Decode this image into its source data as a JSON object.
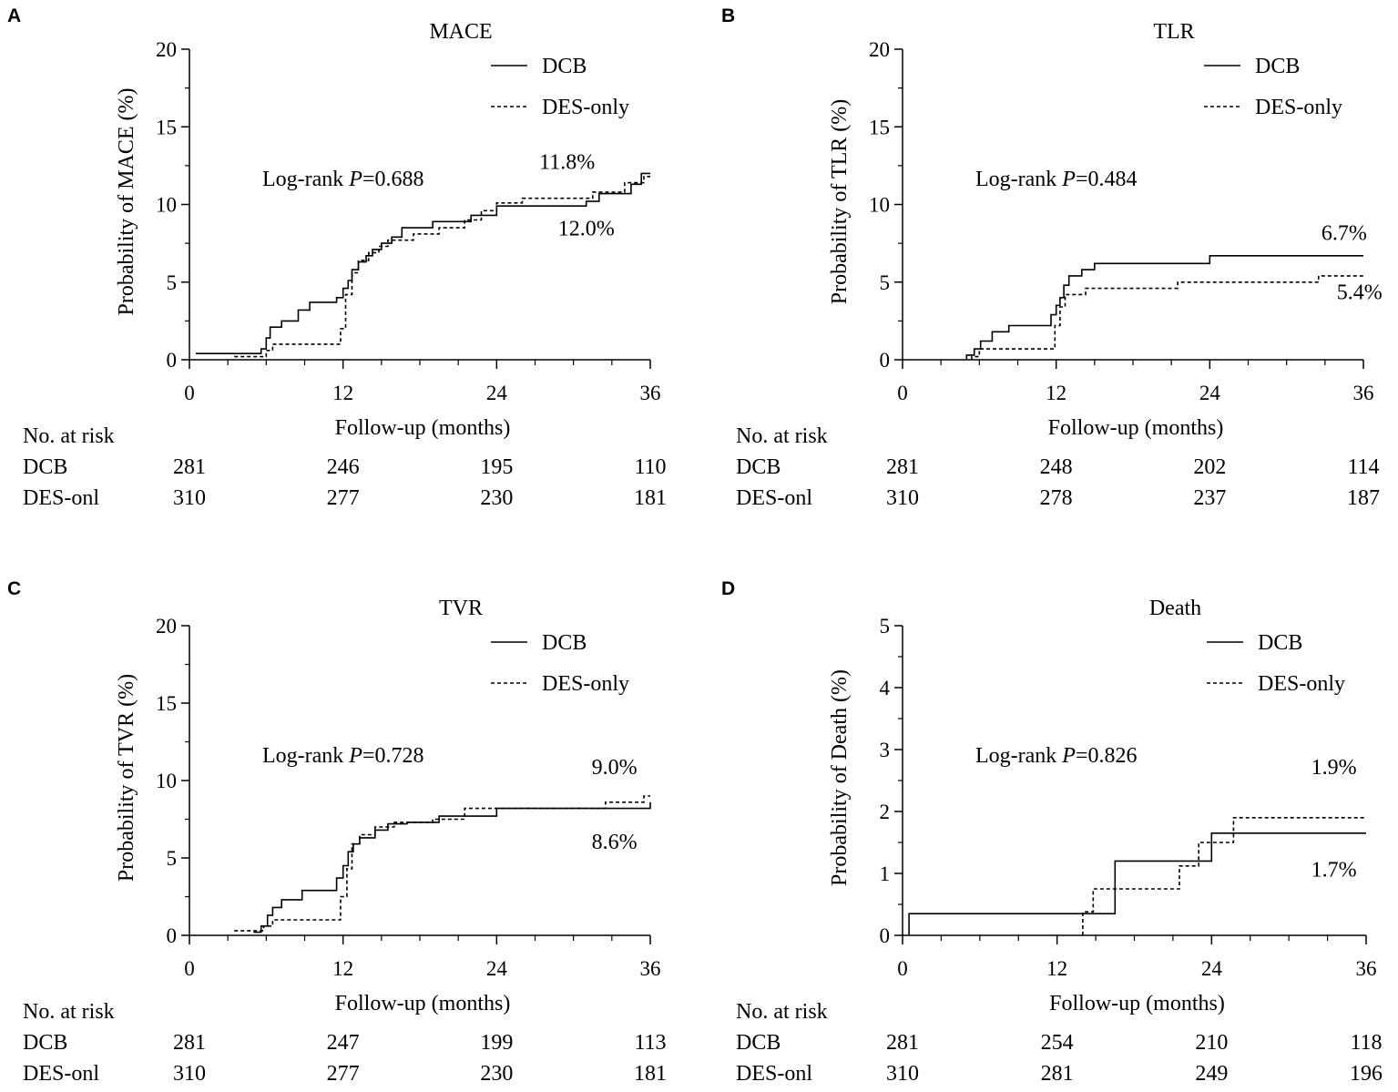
{
  "chart_data": [
    {
      "type": "line",
      "panel_label": "A",
      "title": "MACE",
      "ylabel": "Probability of MACE (%)",
      "xlabel": "Follow-up (months)",
      "xlim": [
        0,
        36
      ],
      "ylim": [
        0,
        20
      ],
      "xticks": [
        "0",
        "12",
        "24",
        "36"
      ],
      "yticks": [
        "0",
        "5",
        "10",
        "15",
        "20"
      ],
      "legend": {
        "position": "top-right",
        "entries": [
          "DCB",
          "DES-only"
        ]
      },
      "pvalue": {
        "prefix": "Log-rank ",
        "symbol": "P",
        "value": "=0.688"
      },
      "annotations": [
        {
          "text": "11.8%",
          "x": 29.5,
          "y": 12.3
        },
        {
          "text": "12.0%",
          "x": 31.0,
          "y": 8.0
        }
      ],
      "series": [
        {
          "name": "DCB",
          "style": "solid",
          "points": [
            [
              0.5,
              0.4
            ],
            [
              3.5,
              0.4
            ],
            [
              5.6,
              0.7
            ],
            [
              6.0,
              1.4
            ],
            [
              6.3,
              2.1
            ],
            [
              7.2,
              2.5
            ],
            [
              8.5,
              3.2
            ],
            [
              9.4,
              3.7
            ],
            [
              11.0,
              3.7
            ],
            [
              11.5,
              4.0
            ],
            [
              12.0,
              4.6
            ],
            [
              12.4,
              5.1
            ],
            [
              12.7,
              5.8
            ],
            [
              13.2,
              6.3
            ],
            [
              13.8,
              6.7
            ],
            [
              14.3,
              7.1
            ],
            [
              15.0,
              7.5
            ],
            [
              15.8,
              7.9
            ],
            [
              16.6,
              8.5
            ],
            [
              19.0,
              8.9
            ],
            [
              22.0,
              9.3
            ],
            [
              24.0,
              9.9
            ],
            [
              30.0,
              9.9
            ],
            [
              31.0,
              10.2
            ],
            [
              32.0,
              10.7
            ],
            [
              34.5,
              11.3
            ],
            [
              35.3,
              12.0
            ],
            [
              36.0,
              12.0
            ]
          ]
        },
        {
          "name": "DES-only",
          "style": "dashed",
          "points": [
            [
              3.5,
              0.2
            ],
            [
              6.0,
              0.6
            ],
            [
              6.5,
              1.0
            ],
            [
              11.2,
              1.0
            ],
            [
              11.8,
              2.0
            ],
            [
              12.2,
              4.2
            ],
            [
              12.7,
              5.6
            ],
            [
              13.2,
              6.4
            ],
            [
              14.0,
              6.9
            ],
            [
              14.8,
              7.3
            ],
            [
              15.5,
              7.7
            ],
            [
              17.5,
              8.1
            ],
            [
              19.5,
              8.5
            ],
            [
              21.5,
              9.0
            ],
            [
              22.8,
              9.6
            ],
            [
              24.0,
              10.1
            ],
            [
              26.0,
              10.4
            ],
            [
              31.5,
              10.8
            ],
            [
              34.0,
              11.4
            ],
            [
              35.5,
              11.8
            ],
            [
              36.0,
              11.8
            ]
          ]
        }
      ],
      "at_risk": {
        "label": "No. at risk",
        "rows": [
          {
            "name": "DCB",
            "values": [
              281,
              246,
              195,
              110
            ]
          },
          {
            "name": "DES-onl",
            "values": [
              310,
              277,
              230,
              181
            ]
          }
        ]
      }
    },
    {
      "type": "line",
      "panel_label": "B",
      "title": "TLR",
      "ylabel": "Probability of TLR (%)",
      "xlabel": "Follow-up (months)",
      "xlim": [
        0,
        36
      ],
      "ylim": [
        0,
        20
      ],
      "xticks": [
        "0",
        "12",
        "24",
        "36"
      ],
      "yticks": [
        "0",
        "5",
        "10",
        "15",
        "20"
      ],
      "legend": {
        "position": "top-right",
        "entries": [
          "DCB",
          "DES-only"
        ]
      },
      "pvalue": {
        "prefix": "Log-rank ",
        "symbol": "P",
        "value": "=0.484"
      },
      "annotations": [
        {
          "text": "6.7%",
          "x": 34.5,
          "y": 7.7
        },
        {
          "text": "5.4%",
          "x": 35.7,
          "y": 3.9
        }
      ],
      "series": [
        {
          "name": "DCB",
          "style": "solid",
          "points": [
            [
              5.0,
              0.0
            ],
            [
              5.0,
              0.3
            ],
            [
              5.6,
              0.7
            ],
            [
              6.1,
              1.2
            ],
            [
              7.0,
              1.8
            ],
            [
              8.3,
              2.2
            ],
            [
              11.0,
              2.2
            ],
            [
              11.6,
              2.9
            ],
            [
              12.0,
              3.5
            ],
            [
              12.3,
              4.0
            ],
            [
              12.6,
              4.8
            ],
            [
              13.0,
              5.4
            ],
            [
              14.0,
              5.8
            ],
            [
              15.0,
              6.2
            ],
            [
              24.0,
              6.2
            ],
            [
              24.0,
              6.7
            ],
            [
              36.0,
              6.7
            ]
          ]
        },
        {
          "name": "DES-only",
          "style": "dashed",
          "points": [
            [
              5.4,
              0.0
            ],
            [
              5.4,
              0.2
            ],
            [
              6.0,
              0.7
            ],
            [
              11.3,
              0.7
            ],
            [
              11.9,
              2.2
            ],
            [
              12.3,
              3.4
            ],
            [
              12.7,
              4.2
            ],
            [
              14.3,
              4.6
            ],
            [
              21.5,
              5.0
            ],
            [
              32.5,
              5.4
            ],
            [
              36.0,
              5.4
            ]
          ]
        }
      ],
      "at_risk": {
        "label": "No. at risk",
        "rows": [
          {
            "name": "DCB",
            "values": [
              281,
              248,
              202,
              114
            ]
          },
          {
            "name": "DES-onl",
            "values": [
              310,
              278,
              237,
              187
            ]
          }
        ]
      }
    },
    {
      "type": "line",
      "panel_label": "C",
      "title": "TVR",
      "ylabel": "Probability of TVR (%)",
      "xlabel": "Follow-up (months)",
      "xlim": [
        0,
        36
      ],
      "ylim": [
        0,
        20
      ],
      "xticks": [
        "0",
        "12",
        "24",
        "36"
      ],
      "yticks": [
        "0",
        "5",
        "10",
        "15",
        "20"
      ],
      "legend": {
        "position": "top-right",
        "entries": [
          "DCB",
          "DES-only"
        ]
      },
      "pvalue": {
        "prefix": "Log-rank ",
        "symbol": "P",
        "value": "=0.728"
      },
      "annotations": [
        {
          "text": "9.0%",
          "x": 33.2,
          "y": 10.4
        },
        {
          "text": "8.6%",
          "x": 33.2,
          "y": 5.6
        }
      ],
      "series": [
        {
          "name": "DCB",
          "style": "solid",
          "points": [
            [
              5.0,
              0.2
            ],
            [
              5.6,
              0.6
            ],
            [
              6.1,
              1.3
            ],
            [
              6.5,
              1.8
            ],
            [
              7.2,
              2.3
            ],
            [
              8.8,
              2.9
            ],
            [
              11.0,
              2.9
            ],
            [
              11.5,
              3.7
            ],
            [
              12.0,
              4.5
            ],
            [
              12.4,
              5.4
            ],
            [
              12.8,
              5.9
            ],
            [
              13.3,
              6.3
            ],
            [
              14.5,
              6.8
            ],
            [
              15.5,
              7.2
            ],
            [
              17.0,
              7.3
            ],
            [
              19.5,
              7.7
            ],
            [
              24.0,
              8.2
            ],
            [
              36.0,
              8.6
            ]
          ]
        },
        {
          "name": "DES-only",
          "style": "dashed",
          "points": [
            [
              3.5,
              0.3
            ],
            [
              5.8,
              0.6
            ],
            [
              6.5,
              1.0
            ],
            [
              11.2,
              1.0
            ],
            [
              11.8,
              2.5
            ],
            [
              12.3,
              4.3
            ],
            [
              12.7,
              5.9
            ],
            [
              13.3,
              6.5
            ],
            [
              14.5,
              7.0
            ],
            [
              16.0,
              7.3
            ],
            [
              19.0,
              7.5
            ],
            [
              21.5,
              8.2
            ],
            [
              32.5,
              8.6
            ],
            [
              35.5,
              9.0
            ],
            [
              36.0,
              9.0
            ]
          ]
        }
      ],
      "at_risk": {
        "label": "No. at risk",
        "rows": [
          {
            "name": "DCB",
            "values": [
              281,
              247,
              199,
              113
            ]
          },
          {
            "name": "DES-onl",
            "values": [
              310,
              277,
              230,
              181
            ]
          }
        ]
      }
    },
    {
      "type": "line",
      "panel_label": "D",
      "title": "Death",
      "ylabel": "Probability of Death (%)",
      "xlabel": "Follow-up (months)",
      "xlim": [
        0,
        36
      ],
      "ylim": [
        0,
        5
      ],
      "xticks": [
        "0",
        "12",
        "24",
        "36"
      ],
      "yticks": [
        "0",
        "1",
        "2",
        "3",
        "4",
        "5"
      ],
      "legend": {
        "position": "top-right",
        "entries": [
          "DCB",
          "DES-only"
        ]
      },
      "pvalue": {
        "prefix": "Log-rank ",
        "symbol": "P",
        "value": "=0.826"
      },
      "annotations": [
        {
          "text": "1.9%",
          "x": 33.5,
          "y": 2.6
        },
        {
          "text": "1.7%",
          "x": 33.5,
          "y": 0.95
        }
      ],
      "series": [
        {
          "name": "DCB",
          "style": "solid",
          "points": [
            [
              0.5,
              0.0
            ],
            [
              0.5,
              0.35
            ],
            [
              16.5,
              0.35
            ],
            [
              16.5,
              1.2
            ],
            [
              24.0,
              1.2
            ],
            [
              24.0,
              1.65
            ],
            [
              36.0,
              1.65
            ]
          ]
        },
        {
          "name": "DES-only",
          "style": "dashed",
          "points": [
            [
              14.0,
              0.0
            ],
            [
              14.0,
              0.38
            ],
            [
              14.8,
              0.75
            ],
            [
              21.5,
              0.75
            ],
            [
              21.5,
              1.12
            ],
            [
              23.0,
              1.5
            ],
            [
              25.7,
              1.5
            ],
            [
              25.7,
              1.9
            ],
            [
              36.0,
              1.9
            ]
          ]
        }
      ],
      "at_risk": {
        "label": "No. at risk",
        "rows": [
          {
            "name": "DCB",
            "values": [
              281,
              254,
              210,
              118
            ]
          },
          {
            "name": "DES-onl",
            "values": [
              310,
              281,
              249,
              196
            ]
          }
        ]
      }
    }
  ]
}
